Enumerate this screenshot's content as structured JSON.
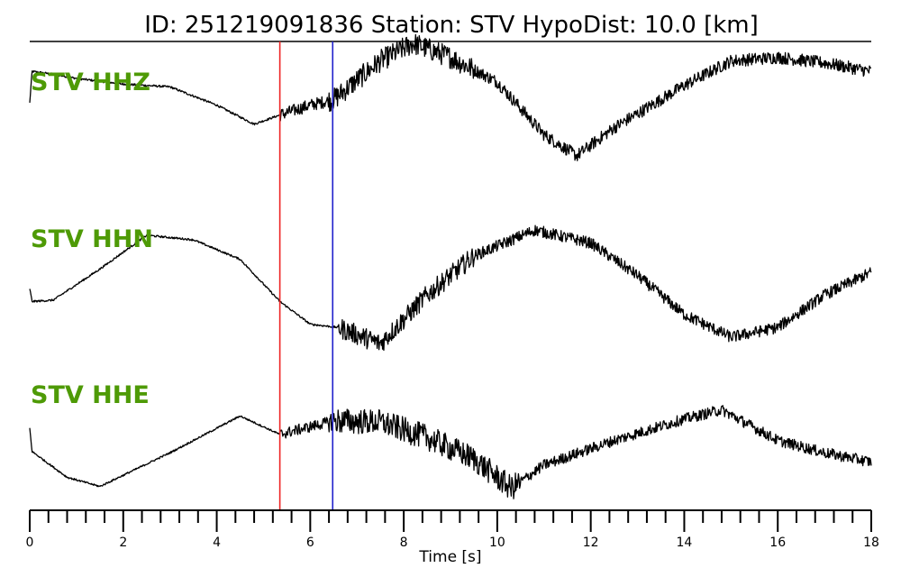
{
  "title": {
    "text": "ID: 251219091836   Station: STV   HypoDist:    10.0 [km]"
  },
  "colors": {
    "label": "#4e9a06",
    "p_pick": "#ee2222",
    "s_pick": "#2222cc",
    "trace": "#000000"
  },
  "chart_data": {
    "type": "line",
    "title": "ID: 251219091836   Station: STV   HypoDist:    10.0 [km]",
    "xlabel": "Time [s]",
    "ylabel": "",
    "xlim": [
      0,
      18
    ],
    "x_ticks": [
      0,
      2,
      4,
      6,
      8,
      10,
      12,
      14,
      16,
      18
    ],
    "x_tick_labels": [
      "0",
      "2",
      "4",
      "6",
      "8",
      "10",
      "12",
      "14",
      "16",
      "18"
    ],
    "minor_tick_step": 0.4,
    "grid": false,
    "picks": [
      {
        "phase": "P",
        "time": 5.35,
        "color": "#ee2222"
      },
      {
        "phase": "S",
        "time": 6.48,
        "color": "#2222cc"
      }
    ],
    "series": [
      {
        "name": "STV HHZ",
        "noise_onset": 5.35,
        "envelope": [
          [
            0.0,
            0.15
          ],
          [
            0.05,
            0.6
          ],
          [
            0.5,
            0.56
          ],
          [
            1.0,
            0.5
          ],
          [
            2.0,
            0.42
          ],
          [
            3.0,
            0.38
          ],
          [
            4.0,
            0.12
          ],
          [
            4.8,
            -0.15
          ],
          [
            5.35,
            -0.02
          ],
          [
            6.0,
            0.12
          ],
          [
            6.5,
            0.2
          ],
          [
            7.5,
            0.75
          ],
          [
            8.2,
            1.0
          ],
          [
            9.0,
            0.8
          ],
          [
            10.0,
            0.45
          ],
          [
            11.0,
            -0.3
          ],
          [
            11.7,
            -0.6
          ],
          [
            12.5,
            -0.2
          ],
          [
            14.0,
            0.4
          ],
          [
            15.0,
            0.75
          ],
          [
            16.0,
            0.8
          ],
          [
            17.0,
            0.72
          ],
          [
            18.0,
            0.6
          ]
        ]
      },
      {
        "name": "STV HHN",
        "noise_onset": 6.6,
        "envelope": [
          [
            0.0,
            0.0
          ],
          [
            0.05,
            -0.2
          ],
          [
            0.5,
            -0.18
          ],
          [
            1.5,
            0.3
          ],
          [
            2.5,
            0.82
          ],
          [
            3.5,
            0.75
          ],
          [
            4.5,
            0.45
          ],
          [
            5.35,
            -0.2
          ],
          [
            6.0,
            -0.55
          ],
          [
            6.6,
            -0.6
          ],
          [
            7.5,
            -0.85
          ],
          [
            8.5,
            -0.1
          ],
          [
            9.5,
            0.5
          ],
          [
            10.8,
            0.9
          ],
          [
            12.0,
            0.7
          ],
          [
            13.0,
            0.2
          ],
          [
            14.0,
            -0.4
          ],
          [
            15.0,
            -0.75
          ],
          [
            16.0,
            -0.6
          ],
          [
            17.0,
            -0.1
          ],
          [
            18.0,
            0.25
          ]
        ]
      },
      {
        "name": "STV HHE",
        "noise_onset": 5.35,
        "envelope": [
          [
            0.0,
            0.0
          ],
          [
            0.05,
            -0.38
          ],
          [
            0.8,
            -0.8
          ],
          [
            1.5,
            -0.95
          ],
          [
            3.0,
            -0.4
          ],
          [
            4.5,
            0.2
          ],
          [
            5.35,
            -0.1
          ],
          [
            6.5,
            0.12
          ],
          [
            7.5,
            0.1
          ],
          [
            8.5,
            -0.15
          ],
          [
            9.5,
            -0.5
          ],
          [
            10.3,
            -0.98
          ],
          [
            11.0,
            -0.6
          ],
          [
            12.5,
            -0.2
          ],
          [
            14.0,
            0.15
          ],
          [
            14.8,
            0.3
          ],
          [
            16.0,
            -0.2
          ],
          [
            17.0,
            -0.4
          ],
          [
            18.0,
            -0.55
          ]
        ]
      }
    ]
  }
}
